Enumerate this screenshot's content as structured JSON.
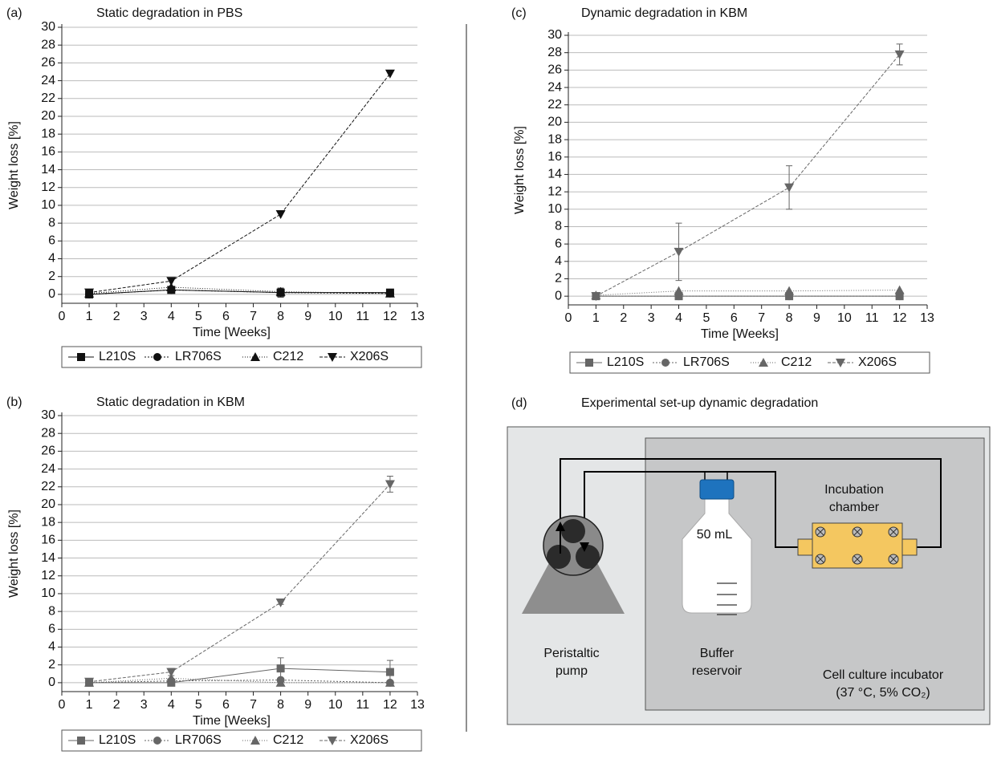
{
  "chart_data": [
    {
      "type": "line",
      "panel_label": "(a)",
      "title": "Static degradation in PBS",
      "x_label": "Time [Weeks]",
      "y_label": "Weight loss [%]",
      "x": [
        1,
        4,
        8,
        12
      ],
      "xlim": [
        0,
        13
      ],
      "xticks": [
        0,
        1,
        2,
        3,
        4,
        5,
        6,
        7,
        8,
        9,
        10,
        11,
        12,
        13
      ],
      "ylim": [
        -1,
        30
      ],
      "yticks": [
        0,
        2,
        4,
        6,
        8,
        10,
        12,
        14,
        16,
        18,
        20,
        22,
        24,
        26,
        28,
        30
      ],
      "grid": true,
      "series": [
        {
          "name": "L210S",
          "color": "#111111",
          "marker": "square",
          "dash": "none",
          "values": [
            0,
            0.5,
            0.2,
            0.2
          ]
        },
        {
          "name": "LR706S",
          "color": "#111111",
          "marker": "circle",
          "dash": "2,2",
          "values": [
            0,
            0.5,
            0.2,
            0.1
          ],
          "errors": [
            0.1,
            0.3,
            0.5,
            0.1
          ]
        },
        {
          "name": "C212",
          "color": "#111111",
          "marker": "triangle",
          "dash": "1,2",
          "values": [
            0.1,
            0.8,
            0.3,
            0.1
          ]
        },
        {
          "name": "X206S",
          "color": "#111111",
          "marker": "triangle-down",
          "dash": "4,2",
          "values": [
            0.2,
            1.5,
            9,
            24.8
          ]
        }
      ]
    },
    {
      "type": "line",
      "panel_label": "(b)",
      "title": "Static degradation in KBM",
      "x_label": "Time [Weeks]",
      "y_label": "Weight loss [%]",
      "x": [
        1,
        4,
        8,
        12
      ],
      "xlim": [
        0,
        13
      ],
      "xticks": [
        0,
        1,
        2,
        3,
        4,
        5,
        6,
        7,
        8,
        9,
        10,
        11,
        12,
        13
      ],
      "ylim": [
        -1,
        30
      ],
      "yticks": [
        0,
        2,
        4,
        6,
        8,
        10,
        12,
        14,
        16,
        18,
        20,
        22,
        24,
        26,
        28,
        30
      ],
      "grid": true,
      "series": [
        {
          "name": "L210S",
          "color": "#666666",
          "marker": "square",
          "dash": "none",
          "values": [
            0,
            0,
            1.6,
            1.2
          ],
          "errors": [
            0.2,
            0.3,
            1.2,
            1.3
          ]
        },
        {
          "name": "LR706S",
          "color": "#666666",
          "marker": "circle",
          "dash": "2,2",
          "values": [
            0,
            0.2,
            0.3,
            0
          ]
        },
        {
          "name": "C212",
          "color": "#666666",
          "marker": "triangle",
          "dash": "1,2",
          "values": [
            0,
            0.5,
            0,
            0
          ]
        },
        {
          "name": "X206S",
          "color": "#666666",
          "marker": "triangle-down",
          "dash": "4,2",
          "values": [
            0.1,
            1.2,
            9,
            22.3
          ],
          "errors": [
            0.2,
            0.4,
            0.2,
            0.9
          ]
        }
      ]
    },
    {
      "type": "line",
      "panel_label": "(c)",
      "title": "Dynamic degradation in KBM",
      "x_label": "Time [Weeks]",
      "y_label": "Weight loss [%]",
      "x": [
        1,
        4,
        8,
        12
      ],
      "xlim": [
        0,
        13
      ],
      "xticks": [
        0,
        1,
        2,
        3,
        4,
        5,
        6,
        7,
        8,
        9,
        10,
        11,
        12,
        13
      ],
      "ylim": [
        -1,
        30
      ],
      "yticks": [
        0,
        2,
        4,
        6,
        8,
        10,
        12,
        14,
        16,
        18,
        20,
        22,
        24,
        26,
        28,
        30
      ],
      "grid": true,
      "series": [
        {
          "name": "L210S",
          "color": "#666666",
          "marker": "square",
          "dash": "none",
          "values": [
            0,
            0,
            0,
            0
          ]
        },
        {
          "name": "LR706S",
          "color": "#666666",
          "marker": "circle",
          "dash": "2,2",
          "values": [
            0,
            0,
            0,
            0
          ]
        },
        {
          "name": "C212",
          "color": "#666666",
          "marker": "triangle",
          "dash": "1,2",
          "values": [
            0.1,
            0.6,
            0.6,
            0.7
          ]
        },
        {
          "name": "X206S",
          "color": "#666666",
          "marker": "triangle-down",
          "dash": "4,2",
          "values": [
            0,
            5.1,
            12.5,
            27.8
          ],
          "errors": [
            0.2,
            3.3,
            2.5,
            1.2
          ]
        }
      ]
    }
  ],
  "diagram": {
    "panel_label": "(d)",
    "title": "Experimental set-up dynamic degradation",
    "pump_label": [
      "Peristaltic",
      "pump"
    ],
    "bottle_volume": "50 mL",
    "reservoir_label": [
      "Buffer",
      "reservoir"
    ],
    "chamber_label": [
      "Incubation",
      "chamber"
    ],
    "incubator_label": [
      "Cell culture incubator",
      "(37 °C, 5% CO₂)"
    ]
  }
}
